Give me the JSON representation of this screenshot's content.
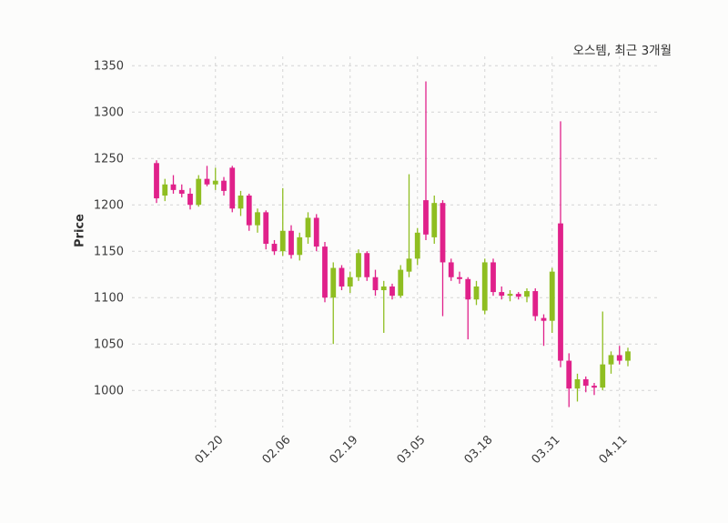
{
  "colors": {
    "up": "#8fbe21",
    "down": "#e0218a",
    "grid": "#d4d4d4",
    "text": "#3c3c3c",
    "background": "#fcfcfb"
  },
  "chart_data": {
    "type": "candlestick",
    "title": "오스템, 최근 3개월",
    "ylabel": "Price",
    "ylim": [
      960,
      1360
    ],
    "yticks": [
      1000,
      1050,
      1100,
      1150,
      1200,
      1250,
      1300,
      1350
    ],
    "xtick_labels": [
      "01.20",
      "02.06",
      "02.19",
      "03.05",
      "03.18",
      "03.31",
      "04.11"
    ],
    "xtick_indices": [
      7,
      15,
      23,
      31,
      39,
      47,
      55
    ],
    "grid": true,
    "legend": false,
    "candles_format": [
      "open",
      "high",
      "low",
      "close"
    ],
    "candles": [
      [
        1245,
        1248,
        1202,
        1207
      ],
      [
        1210,
        1228,
        1204,
        1222
      ],
      [
        1222,
        1232,
        1212,
        1216
      ],
      [
        1216,
        1222,
        1208,
        1212
      ],
      [
        1212,
        1218,
        1195,
        1200
      ],
      [
        1200,
        1232,
        1198,
        1228
      ],
      [
        1228,
        1242,
        1220,
        1222
      ],
      [
        1222,
        1240,
        1216,
        1226
      ],
      [
        1226,
        1230,
        1210,
        1215
      ],
      [
        1240,
        1242,
        1192,
        1196
      ],
      [
        1196,
        1215,
        1188,
        1210
      ],
      [
        1210,
        1212,
        1172,
        1178
      ],
      [
        1178,
        1196,
        1170,
        1192
      ],
      [
        1192,
        1194,
        1152,
        1158
      ],
      [
        1158,
        1162,
        1146,
        1150
      ],
      [
        1150,
        1218,
        1145,
        1172
      ],
      [
        1172,
        1178,
        1142,
        1146
      ],
      [
        1146,
        1170,
        1140,
        1165
      ],
      [
        1165,
        1192,
        1158,
        1186
      ],
      [
        1186,
        1190,
        1150,
        1155
      ],
      [
        1155,
        1160,
        1095,
        1100
      ],
      [
        1100,
        1138,
        1050,
        1132
      ],
      [
        1132,
        1135,
        1108,
        1112
      ],
      [
        1112,
        1128,
        1105,
        1122
      ],
      [
        1122,
        1152,
        1118,
        1148
      ],
      [
        1148,
        1150,
        1118,
        1122
      ],
      [
        1122,
        1130,
        1102,
        1108
      ],
      [
        1108,
        1118,
        1062,
        1112
      ],
      [
        1112,
        1115,
        1098,
        1102
      ],
      [
        1102,
        1135,
        1100,
        1130
      ],
      [
        1128,
        1233,
        1122,
        1142
      ],
      [
        1142,
        1175,
        1135,
        1170
      ],
      [
        1205,
        1333,
        1162,
        1168
      ],
      [
        1165,
        1210,
        1158,
        1202
      ],
      [
        1202,
        1205,
        1080,
        1138
      ],
      [
        1138,
        1142,
        1118,
        1122
      ],
      [
        1122,
        1128,
        1115,
        1120
      ],
      [
        1120,
        1122,
        1055,
        1098
      ],
      [
        1098,
        1118,
        1092,
        1112
      ],
      [
        1086,
        1142,
        1082,
        1138
      ],
      [
        1138,
        1142,
        1102,
        1106
      ],
      [
        1106,
        1112,
        1098,
        1102
      ],
      [
        1102,
        1108,
        1096,
        1104
      ],
      [
        1104,
        1106,
        1098,
        1101
      ],
      [
        1101,
        1110,
        1095,
        1107
      ],
      [
        1107,
        1110,
        1075,
        1080
      ],
      [
        1078,
        1082,
        1048,
        1075
      ],
      [
        1075,
        1132,
        1062,
        1128
      ],
      [
        1180,
        1290,
        1025,
        1032
      ],
      [
        1032,
        1040,
        982,
        1002
      ],
      [
        1002,
        1018,
        988,
        1012
      ],
      [
        1012,
        1015,
        998,
        1005
      ],
      [
        1005,
        1008,
        995,
        1003
      ],
      [
        1003,
        1085,
        1000,
        1028
      ],
      [
        1028,
        1042,
        1018,
        1038
      ],
      [
        1038,
        1048,
        1028,
        1032
      ],
      [
        1032,
        1046,
        1026,
        1042
      ]
    ]
  }
}
